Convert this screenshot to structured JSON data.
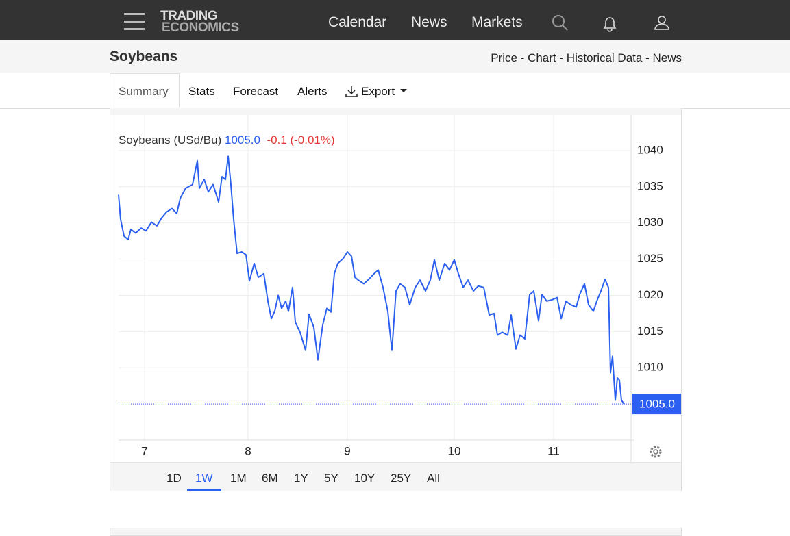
{
  "nav": {
    "logo_top": "TRADING",
    "logo_bottom": "ECONOMICS",
    "links": [
      "Calendar",
      "News",
      "Markets"
    ]
  },
  "header": {
    "title": "Soybeans",
    "links": [
      "Price",
      "Chart",
      "Historical Data",
      "News"
    ],
    "separator": "-"
  },
  "tabs": {
    "items": [
      "Summary",
      "Stats",
      "Forecast",
      "Alerts",
      "Export"
    ],
    "active": "Summary"
  },
  "quote": {
    "name": "Soybeans (USd/Bu)",
    "price": "1005.0",
    "change": "-0.1 (-0.01%)"
  },
  "ranges": {
    "items": [
      "1D",
      "1W",
      "1M",
      "6M",
      "1Y",
      "5Y",
      "10Y",
      "25Y",
      "All"
    ],
    "active": "1W"
  },
  "chart_data": {
    "type": "line",
    "color": "#2b5ff0",
    "grid": true,
    "xlim": [
      0,
      748
    ],
    "ylim": [
      1000,
      1045
    ],
    "xticks": [
      {
        "value": 38,
        "label": "7"
      },
      {
        "value": 189,
        "label": "8"
      },
      {
        "value": 334,
        "label": "9"
      },
      {
        "value": 490,
        "label": "10"
      },
      {
        "value": 635,
        "label": "11"
      }
    ],
    "yticks": [
      1010,
      1015,
      1020,
      1025,
      1030,
      1035,
      1040
    ],
    "x": [
      0,
      3,
      8,
      14,
      18,
      25,
      33,
      40,
      48,
      56,
      63,
      70,
      78,
      85,
      90,
      98,
      108,
      115,
      118,
      125,
      131,
      138,
      146,
      151,
      156,
      160,
      164,
      168,
      173,
      180,
      186,
      191,
      198,
      204,
      212,
      218,
      223,
      228,
      233,
      238,
      244,
      248,
      254,
      258,
      265,
      273,
      278,
      285,
      291,
      298,
      304,
      310,
      315,
      320,
      328,
      334,
      340,
      345,
      350,
      358,
      365,
      373,
      379,
      386,
      393,
      399,
      405,
      411,
      418,
      425,
      433,
      440,
      448,
      455,
      461,
      468,
      476,
      483,
      490,
      496,
      503,
      510,
      518,
      525,
      533,
      541,
      548,
      553,
      560,
      568,
      573,
      580,
      586,
      593,
      600,
      606,
      613,
      618,
      625,
      633,
      640,
      646,
      653,
      660,
      668,
      673,
      680,
      686,
      693,
      698,
      704,
      710,
      715,
      718,
      721,
      725,
      728,
      731,
      734,
      738
    ],
    "values": [
      1033.9,
      1030.5,
      1028.2,
      1027.7,
      1029.1,
      1028.6,
      1029.3,
      1028.9,
      1030.1,
      1029.6,
      1030.7,
      1031.5,
      1032.0,
      1031.3,
      1033.4,
      1034.8,
      1035.3,
      1038.6,
      1034.8,
      1036.0,
      1034.3,
      1035.3,
      1032.9,
      1036.4,
      1036.0,
      1039.2,
      1035.3,
      1030.5,
      1025.8,
      1026.0,
      1025.6,
      1022.0,
      1024.4,
      1022.5,
      1023.0,
      1019.2,
      1016.8,
      1017.8,
      1020.0,
      1018.2,
      1019.2,
      1017.8,
      1021.1,
      1016.3,
      1014.9,
      1012.4,
      1017.4,
      1015.6,
      1011.1,
      1015.9,
      1018.2,
      1017.7,
      1023.0,
      1024.4,
      1025.1,
      1026.0,
      1025.4,
      1022.5,
      1022.1,
      1021.6,
      1022.2,
      1023.0,
      1023.5,
      1021.1,
      1017.8,
      1012.4,
      1020.6,
      1021.6,
      1021.1,
      1018.7,
      1021.1,
      1022.1,
      1020.6,
      1022.1,
      1024.9,
      1022.1,
      1024.4,
      1023.5,
      1024.9,
      1023.0,
      1021.1,
      1022.1,
      1020.6,
      1021.3,
      1021.1,
      1017.3,
      1017.5,
      1014.5,
      1014.9,
      1014.5,
      1017.3,
      1012.6,
      1014.5,
      1014.0,
      1020.1,
      1020.6,
      1016.5,
      1020.1,
      1019.2,
      1019.4,
      1019.7,
      1016.8,
      1019.2,
      1018.7,
      1018.4,
      1020.1,
      1021.6,
      1018.7,
      1017.8,
      1019.2,
      1020.6,
      1022.2,
      1021.1,
      1009.3,
      1011.6,
      1005.5,
      1008.6,
      1008.3,
      1005.5,
      1005.0
    ]
  }
}
